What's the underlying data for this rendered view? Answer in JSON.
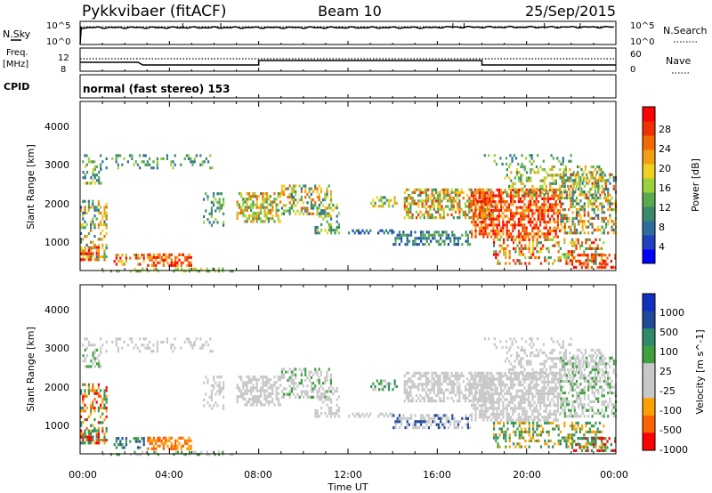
{
  "header": {
    "station": "Pykkvibaer (fitACF)",
    "beam": "Beam 10",
    "date": "25/Sep/2015"
  },
  "noise_panel": {
    "left_label": "N.Sky",
    "left_ticks": [
      "10^5",
      "10^0"
    ],
    "right_label": "N.Search",
    "right_ticks": [
      "10^5",
      "10^0"
    ]
  },
  "freq_panel": {
    "left_label_1": "Freq.",
    "left_label_2": "[MHz]",
    "left_ticks": [
      "12",
      "8"
    ],
    "right_label": "Nave",
    "right_ticks": [
      "60",
      "0"
    ]
  },
  "cpid_panel": {
    "label": "CPID",
    "mode": "normal (fast stereo) 153"
  },
  "x_axis": {
    "label": "Time UT",
    "ticks": [
      "00:00",
      "04:00",
      "08:00",
      "12:00",
      "16:00",
      "20:00",
      "00:00"
    ]
  },
  "colors": {
    "power_scale": [
      "#0000ff",
      "#2040c0",
      "#2d6e9e",
      "#3a8a6a",
      "#5aaa50",
      "#9ad23a",
      "#f0d020",
      "#f0a010",
      "#f06a00",
      "#f03000",
      "#ff0000"
    ],
    "velocity_scale": [
      "#ff0000",
      "#ff6000",
      "#ffa000",
      "#c8c8c8",
      "#c8c8c8",
      "#40a040",
      "#2e8a6a",
      "#204a9a",
      "#1030c0"
    ]
  },
  "chart_data": [
    {
      "type": "line",
      "title": "N.Sky / N.Search",
      "x": [
        "00:00",
        "04:00",
        "08:00",
        "12:00",
        "16:00",
        "20:00",
        "24:00"
      ],
      "series": [
        {
          "name": "N.Sky",
          "values": [
            4,
            4,
            4,
            4,
            4.2,
            4.3,
            4.2
          ]
        }
      ],
      "ylim_label": [
        "10^0",
        "10^5"
      ]
    },
    {
      "type": "line",
      "title": "Freq./Nave",
      "x": [
        "00:00",
        "02:50",
        "08:00",
        "18:00",
        "24:00"
      ],
      "series": [
        {
          "name": "Freq.",
          "values": [
            11,
            10,
            11.5,
            10,
            10
          ]
        },
        {
          "name": "Nave",
          "values": [
            20,
            20,
            20,
            20,
            20
          ]
        }
      ],
      "ylim": [
        8,
        12
      ]
    },
    {
      "type": "heatmap",
      "title": "Power",
      "ylabel": "Slant Range [km]",
      "xlabel": "Time UT",
      "ylim": [
        180,
        4600
      ],
      "yticks": [
        "1000",
        "2000",
        "3000",
        "4000"
      ],
      "colorbar_label": "Power [dB]",
      "colorbar_ticks": [
        "4",
        "8",
        "12",
        "16",
        "20",
        "24",
        "28"
      ],
      "colorbar_range": [
        0,
        32
      ]
    },
    {
      "type": "heatmap",
      "title": "Velocity",
      "ylabel": "Slant Range [km]",
      "xlabel": "Time UT",
      "ylim": [
        180,
        4600
      ],
      "yticks": [
        "1000",
        "2000",
        "3000",
        "4000"
      ],
      "colorbar_label": "Velocity [m s^-1]",
      "colorbar_ticks": [
        "1000",
        "500",
        "100",
        "25",
        "-25",
        "-100",
        "-500",
        "-1000"
      ]
    }
  ]
}
